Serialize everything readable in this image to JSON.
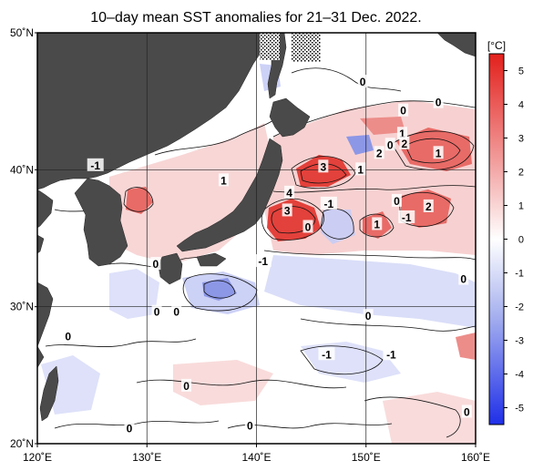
{
  "title": "10–day mean SST anomalies for 21–31 Dec. 2022.",
  "map": {
    "lon_range": [
      120,
      160
    ],
    "lat_range": [
      20,
      50
    ],
    "lon_ticks": [
      {
        "value": 120,
        "label": "120˚E"
      },
      {
        "value": 130,
        "label": "130˚E"
      },
      {
        "value": 140,
        "label": "140˚E"
      },
      {
        "value": 150,
        "label": "150˚E"
      },
      {
        "value": 160,
        "label": "160˚E"
      }
    ],
    "lat_ticks": [
      {
        "value": 20,
        "label": "20˚N"
      },
      {
        "value": 30,
        "label": "30˚N"
      },
      {
        "value": 40,
        "label": "40˚N"
      },
      {
        "value": 50,
        "label": "50˚N"
      }
    ],
    "grid": true,
    "land_color": "#4a4a4a",
    "contour_labels": [
      {
        "lon": 125.3,
        "lat": 40.3,
        "text": "-1"
      },
      {
        "lon": 137.0,
        "lat": 39.2,
        "text": "1"
      },
      {
        "lon": 143.0,
        "lat": 38.3,
        "text": "4"
      },
      {
        "lon": 142.8,
        "lat": 37.0,
        "text": "3"
      },
      {
        "lon": 146.1,
        "lat": 40.2,
        "text": "3"
      },
      {
        "lon": 149.5,
        "lat": 40.0,
        "text": "1"
      },
      {
        "lon": 151.2,
        "lat": 41.2,
        "text": "2"
      },
      {
        "lon": 152.2,
        "lat": 41.8,
        "text": "0"
      },
      {
        "lon": 153.3,
        "lat": 42.6,
        "text": "1"
      },
      {
        "lon": 153.5,
        "lat": 41.9,
        "text": "2"
      },
      {
        "lon": 156.6,
        "lat": 41.2,
        "text": "1"
      },
      {
        "lon": 146.6,
        "lat": 37.5,
        "text": "-1"
      },
      {
        "lon": 152.8,
        "lat": 37.7,
        "text": "0"
      },
      {
        "lon": 155.7,
        "lat": 37.3,
        "text": "2"
      },
      {
        "lon": 153.7,
        "lat": 36.5,
        "text": "-1"
      },
      {
        "lon": 151.0,
        "lat": 36.0,
        "text": "1"
      },
      {
        "lon": 144.7,
        "lat": 35.8,
        "text": "0"
      },
      {
        "lon": 149.7,
        "lat": 46.4,
        "text": "0"
      },
      {
        "lon": 153.4,
        "lat": 44.3,
        "text": "0"
      },
      {
        "lon": 156.6,
        "lat": 44.9,
        "text": "0"
      },
      {
        "lon": 130.8,
        "lat": 33.1,
        "text": "0"
      },
      {
        "lon": 140.6,
        "lat": 33.3,
        "text": "-1"
      },
      {
        "lon": 158.9,
        "lat": 32.0,
        "text": "0"
      },
      {
        "lon": 130.9,
        "lat": 29.6,
        "text": "0"
      },
      {
        "lon": 132.7,
        "lat": 29.6,
        "text": "0"
      },
      {
        "lon": 150.2,
        "lat": 29.3,
        "text": "0"
      },
      {
        "lon": 122.8,
        "lat": 27.8,
        "text": "0"
      },
      {
        "lon": 146.4,
        "lat": 26.5,
        "text": "-1"
      },
      {
        "lon": 152.3,
        "lat": 26.5,
        "text": "-1"
      },
      {
        "lon": 133.6,
        "lat": 24.2,
        "text": "0"
      },
      {
        "lon": 139.4,
        "lat": 21.3,
        "text": "0"
      },
      {
        "lon": 128.4,
        "lat": 21.1,
        "text": "0"
      },
      {
        "lon": 159.2,
        "lat": 22.3,
        "text": "0"
      }
    ]
  },
  "colorbar": {
    "unit": "[°C]",
    "range": [
      -5,
      5
    ],
    "ticks": [
      "5",
      "4",
      "3",
      "2",
      "1",
      "0",
      "-1",
      "-2",
      "-3",
      "-4",
      "-5"
    ],
    "colors": {
      "high": "#e3201c",
      "mid_high": "#f2a2a1",
      "zero": "#ffffff",
      "mid_low": "#a9b3ef",
      "low": "#1f2fe8"
    }
  }
}
